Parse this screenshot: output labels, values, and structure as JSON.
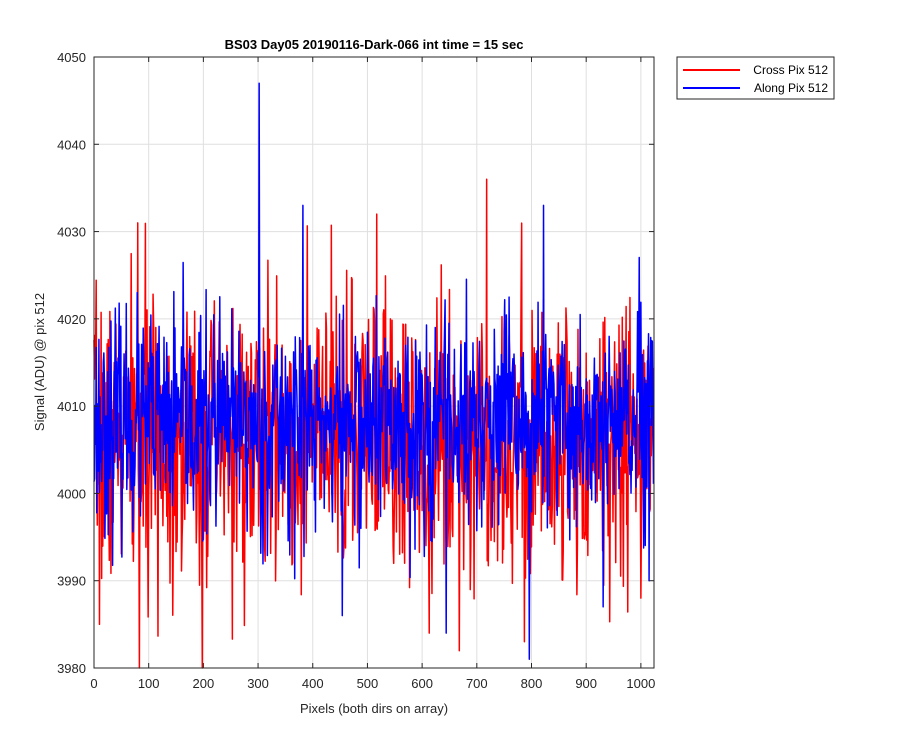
{
  "chart_data": {
    "type": "line",
    "title": "BS03 Day05 20190116-Dark-066 int time = 15 sec",
    "xlabel": "Pixels (both dirs on array)",
    "ylabel": "Signal (ADU) @ pix 512",
    "xlim": [
      0,
      1024
    ],
    "ylim": [
      3980,
      4050
    ],
    "xticks": [
      0,
      100,
      200,
      300,
      400,
      500,
      600,
      700,
      800,
      900,
      1000
    ],
    "yticks": [
      3980,
      3990,
      4000,
      4010,
      4020,
      4030,
      4040,
      4050
    ],
    "grid": true,
    "legend_position": "outside-top-right",
    "sample_count": 1024,
    "series": [
      {
        "name": "Cross Pix 512",
        "color": "#ff0000",
        "noise_seed": 7,
        "baseline": 4006,
        "noise_std": 8,
        "clip": [
          3980,
          4036
        ],
        "peaks": [
          [
            10,
            3985
          ],
          [
            83,
            3980
          ],
          [
            80,
            4031
          ],
          [
            198,
            3980
          ],
          [
            517,
            4032
          ],
          [
            613,
            3984
          ],
          [
            718,
            4036
          ],
          [
            787,
            3983
          ],
          [
            1000,
            3988
          ]
        ]
      },
      {
        "name": "Along Pix 512",
        "color": "#0000ff",
        "noise_seed": 23,
        "baseline": 4008,
        "noise_std": 6,
        "clip": [
          3981,
          4047
        ],
        "peaks": [
          [
            302,
            4047
          ],
          [
            382,
            4033
          ],
          [
            454,
            3986
          ],
          [
            644,
            3984
          ],
          [
            796,
            3981
          ],
          [
            822,
            4033
          ],
          [
            931,
            3987
          ],
          [
            1015,
            3990
          ]
        ]
      }
    ]
  }
}
